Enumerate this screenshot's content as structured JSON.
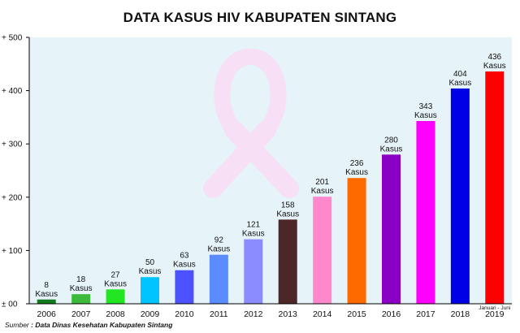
{
  "title": "DATA KASUS HIV KABUPATEN SINTANG",
  "source_prefix": "Sumber",
  "source_text": ": Data Dinas Kesehatan Kabupaten Sintang",
  "colors": {
    "plot_background": "#e6f3f9",
    "ribbon": "#f7dff5",
    "axis": "#000000"
  },
  "chart_data": {
    "type": "bar",
    "categories": [
      "2006",
      "2007",
      "2008",
      "2009",
      "2010",
      "2011",
      "2012",
      "2013",
      "2014",
      "2015",
      "2016",
      "2017",
      "2018",
      "2019"
    ],
    "values": [
      8,
      18,
      27,
      50,
      63,
      92,
      121,
      158,
      201,
      236,
      280,
      343,
      404,
      436
    ],
    "value_unit": "Kasus",
    "category_note": {
      "category": "2019",
      "text": "Januari - Juni"
    },
    "bar_colors": [
      "#127a1d",
      "#3cba3c",
      "#22e622",
      "#00c4ff",
      "#4c52ff",
      "#5a8cff",
      "#8a8cff",
      "#4d2727",
      "#ff88cc",
      "#ff6a00",
      "#8a00c4",
      "#ff00ff",
      "#0000e6",
      "#ff0000"
    ],
    "yticks": [
      {
        "value": 0,
        "label": "± 00"
      },
      {
        "value": 100,
        "label": "+ 100"
      },
      {
        "value": 200,
        "label": "+ 200"
      },
      {
        "value": 300,
        "label": "+ 300"
      },
      {
        "value": 400,
        "label": "+ 400"
      },
      {
        "value": 500,
        "label": "+ 500"
      }
    ],
    "ylim": [
      0,
      500
    ],
    "grid": false,
    "legend": "none"
  }
}
